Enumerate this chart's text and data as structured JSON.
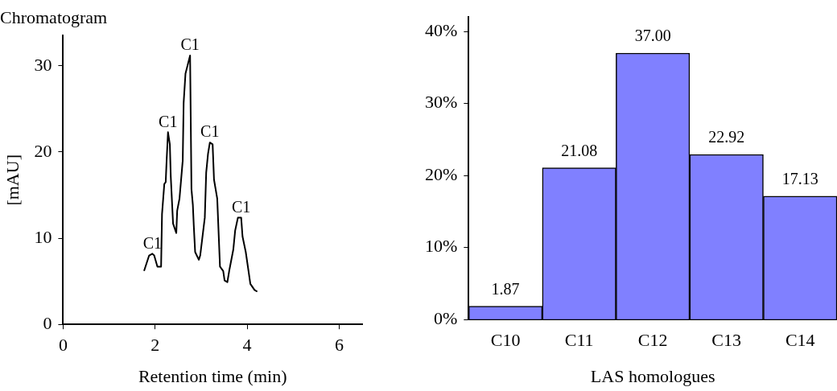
{
  "chart_data": [
    {
      "type": "line",
      "title": "Chromatogram",
      "xlabel": "Retention time (min)",
      "ylabel": "[mAU]",
      "xlim": [
        0,
        6.5
      ],
      "xticks": [
        0,
        2,
        4,
        6
      ],
      "ylim": [
        0,
        33.5
      ],
      "yticks": [
        0,
        10,
        20,
        30
      ],
      "grid": false,
      "legend": false,
      "marker": "none",
      "line_style": "solid",
      "annotations": [
        {
          "text": "C1",
          "x": 1.94,
          "y": 8.2
        },
        {
          "text": "C1",
          "x": 2.28,
          "y": 22.3
        },
        {
          "text": "C1",
          "x": 2.76,
          "y": 31.2
        },
        {
          "text": "C1",
          "x": 3.19,
          "y": 21.1
        },
        {
          "text": "C1",
          "x": 3.87,
          "y": 12.4
        }
      ],
      "series": [
        {
          "color": "#000000",
          "x": [
            1.76,
            1.87,
            1.94,
            1.98,
            2.05,
            2.13,
            2.15,
            2.2,
            2.23,
            2.25,
            2.28,
            2.32,
            2.34,
            2.39,
            2.46,
            2.48,
            2.53,
            2.6,
            2.62,
            2.66,
            2.76,
            2.77,
            2.79,
            2.82,
            2.84,
            2.87,
            2.95,
            2.98,
            3.08,
            3.11,
            3.15,
            3.19,
            3.25,
            3.28,
            3.35,
            3.41,
            3.48,
            3.51,
            3.57,
            3.61,
            3.7,
            3.74,
            3.8,
            3.87,
            3.9,
            3.97,
            4.03,
            4.07,
            4.16,
            4.22
          ],
          "values": [
            6.2,
            8.0,
            8.2,
            8.0,
            6.7,
            6.7,
            12.8,
            16.3,
            16.5,
            19.0,
            22.3,
            20.9,
            17.2,
            11.7,
            10.6,
            13.2,
            14.6,
            19.0,
            25.7,
            29.1,
            31.2,
            31.2,
            15.7,
            13.9,
            11.5,
            8.4,
            7.5,
            8.0,
            12.4,
            17.6,
            19.8,
            21.1,
            20.9,
            16.8,
            14.6,
            6.7,
            6.2,
            5.1,
            4.9,
            6.2,
            8.7,
            10.9,
            12.4,
            12.4,
            10.2,
            8.4,
            6.2,
            4.7,
            4.0,
            3.8
          ]
        }
      ]
    },
    {
      "type": "bar",
      "xlabel": "LAS homologues",
      "categories": [
        "C10",
        "C11",
        "C12",
        "C13",
        "C14"
      ],
      "ylim": [
        0,
        42
      ],
      "yticks": [
        {
          "value": 0,
          "label": "0%"
        },
        {
          "value": 10,
          "label": "10%"
        },
        {
          "value": 20,
          "label": "20%"
        },
        {
          "value": 30,
          "label": "30%"
        },
        {
          "value": 40,
          "label": "40%"
        }
      ],
      "grid": false,
      "legend": false,
      "series": [
        {
          "color": "#8080ff",
          "values": [
            1.87,
            21.08,
            37,
            22.92,
            17.13
          ],
          "value_labels": [
            "1.87",
            "21.08",
            "37.00",
            "22.92",
            "17.13"
          ]
        }
      ]
    }
  ]
}
